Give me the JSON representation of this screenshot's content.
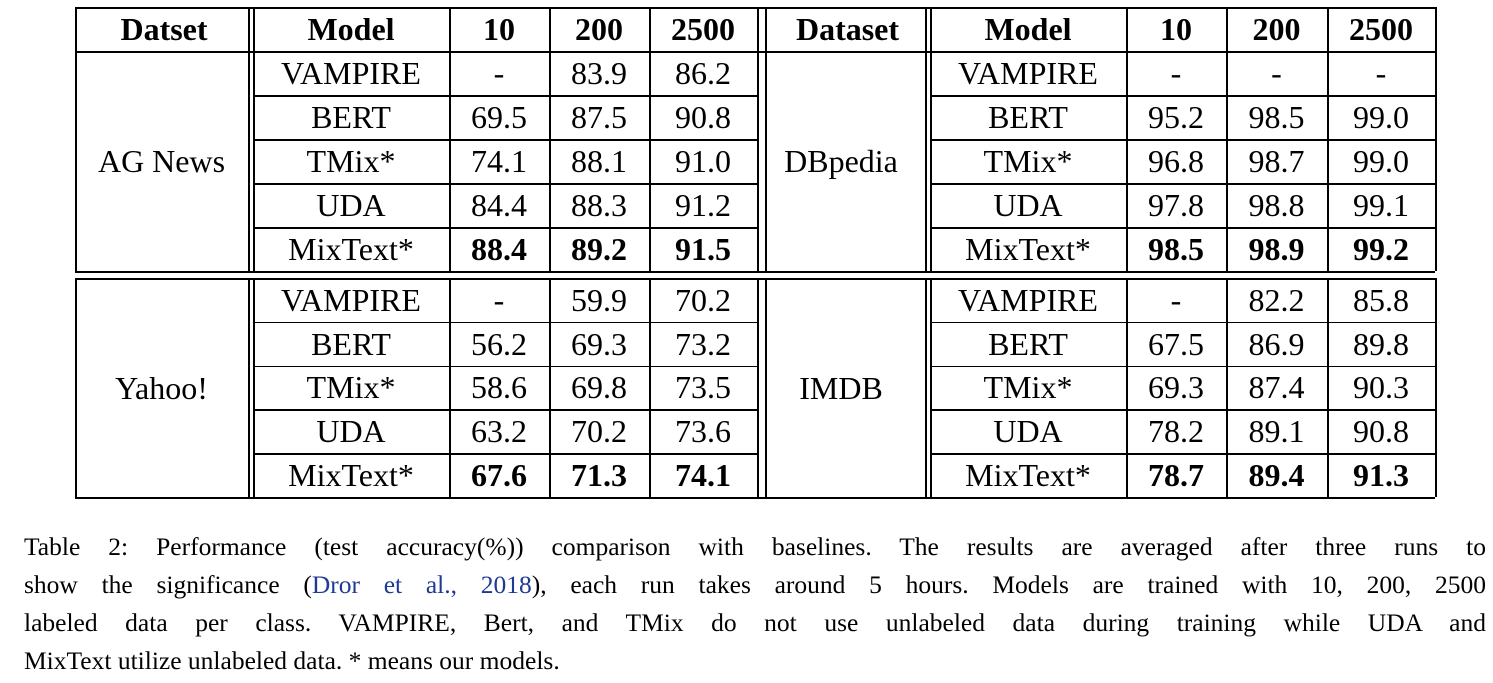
{
  "table": {
    "headers": {
      "left": [
        "Datset",
        "Model",
        "10",
        "200",
        "2500"
      ],
      "right": [
        "Dataset",
        "Model",
        "10",
        "200",
        "2500"
      ]
    },
    "blocks": [
      {
        "left_dataset": "AG News",
        "right_dataset": "DBpedia",
        "rows": [
          {
            "model": "VAMPIRE",
            "left": [
              "-",
              "83.9",
              "86.2"
            ],
            "right": [
              "-",
              "-",
              "-"
            ],
            "bold": false
          },
          {
            "model": "BERT",
            "left": [
              "69.5",
              "87.5",
              "90.8"
            ],
            "right": [
              "95.2",
              "98.5",
              "99.0"
            ],
            "bold": false
          },
          {
            "model": "TMix*",
            "left": [
              "74.1",
              "88.1",
              "91.0"
            ],
            "right": [
              "96.8",
              "98.7",
              "99.0"
            ],
            "bold": false
          },
          {
            "model": "UDA",
            "left": [
              "84.4",
              "88.3",
              "91.2"
            ],
            "right": [
              "97.8",
              "98.8",
              "99.1"
            ],
            "bold": false
          },
          {
            "model": "MixText*",
            "left": [
              "88.4",
              "89.2",
              "91.5"
            ],
            "right": [
              "98.5",
              "98.9",
              "99.2"
            ],
            "bold": true
          }
        ]
      },
      {
        "left_dataset": "Yahoo!",
        "right_dataset": "IMDB",
        "rows": [
          {
            "model": "VAMPIRE",
            "left": [
              "-",
              "59.9",
              "70.2"
            ],
            "right": [
              "-",
              "82.2",
              "85.8"
            ],
            "bold": false
          },
          {
            "model": "BERT",
            "left": [
              "56.2",
              "69.3",
              "73.2"
            ],
            "right": [
              "67.5",
              "86.9",
              "89.8"
            ],
            "bold": false
          },
          {
            "model": "TMix*",
            "left": [
              "58.6",
              "69.8",
              "73.5"
            ],
            "right": [
              "69.3",
              "87.4",
              "90.3"
            ],
            "bold": false
          },
          {
            "model": "UDA",
            "left": [
              "63.2",
              "70.2",
              "73.6"
            ],
            "right": [
              "78.2",
              "89.1",
              "90.8"
            ],
            "bold": false
          },
          {
            "model": "MixText*",
            "left": [
              "67.6",
              "71.3",
              "74.1"
            ],
            "right": [
              "78.7",
              "89.4",
              "91.3"
            ],
            "bold": true
          }
        ]
      }
    ]
  },
  "caption": {
    "line1": "Table 2: Performance (test accuracy(%)) comparison with baselines. The results are averaged after three runs to",
    "line2_before": "show the significance (",
    "line2_cite": "Dror et al., 2018",
    "line2_after": "), each run takes around 5 hours. Models are trained with 10, 200, 2500",
    "line3": "labeled data per class. VAMPIRE, Bert, and TMix do not use unlabeled data during training while UDA and",
    "line4": "MixText utilize unlabeled data. * means our models."
  }
}
